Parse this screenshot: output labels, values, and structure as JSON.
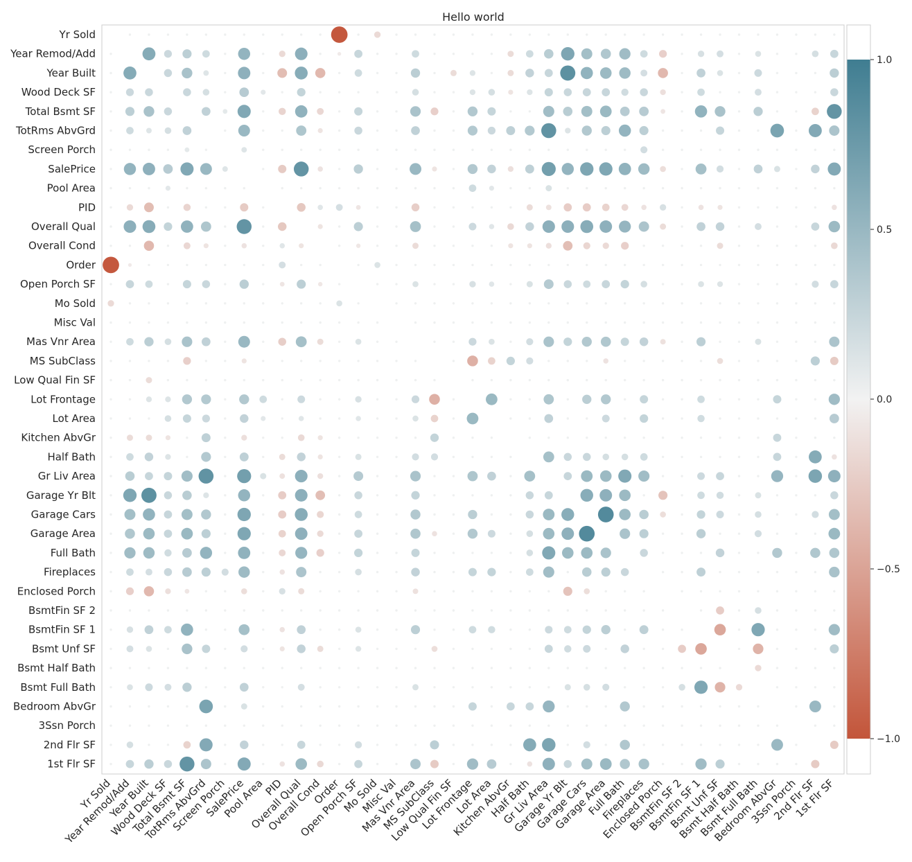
{
  "chart_data": {
    "type": "heatmap",
    "title": "Hello world",
    "variables": [
      "Yr Sold",
      "Year Remod/Add",
      "Year Built",
      "Wood Deck SF",
      "Total Bsmt SF",
      "TotRms AbvGrd",
      "Screen Porch",
      "SalePrice",
      "Pool Area",
      "PID",
      "Overall Qual",
      "Overall Cond",
      "Order",
      "Open Porch SF",
      "Mo Sold",
      "Misc Val",
      "Mas Vnr Area",
      "MS SubClass",
      "Low Qual Fin SF",
      "Lot Frontage",
      "Lot Area",
      "Kitchen AbvGr",
      "Half Bath",
      "Gr Liv Area",
      "Garage Yr Blt",
      "Garage Cars",
      "Garage Area",
      "Full Bath",
      "Fireplaces",
      "Enclosed Porch",
      "BsmtFin SF 2",
      "BsmtFin SF 1",
      "Bsmt Unf SF",
      "Bsmt Half Bath",
      "Bsmt Full Bath",
      "Bedroom AbvGr",
      "3Ssn Porch",
      "2nd Flr SF",
      "1st Flr SF"
    ],
    "encoding": "symmetric correlation matrix; marker size and color encode correlation; diagonal empty",
    "value_range": [
      -1.0,
      1.0
    ],
    "colorbar": {
      "ticks": [
        1.0,
        0.5,
        0.0,
        -0.5,
        -1.0
      ],
      "tick_labels": [
        "1.0",
        "0.5",
        "0.0",
        "−0.5",
        "−1.0"
      ],
      "placement": "right"
    },
    "colors": {
      "negative": "#c3553a",
      "neutral": "#f2f2f2",
      "positive": "#3f7d91"
    },
    "grid": false,
    "pairs_upper_triangle": [
      [
        0,
        12,
        -0.98
      ],
      [
        0,
        14,
        -0.15
      ],
      [
        1,
        2,
        0.61
      ],
      [
        1,
        3,
        0.22
      ],
      [
        1,
        4,
        0.3
      ],
      [
        1,
        5,
        0.2
      ],
      [
        1,
        7,
        0.53
      ],
      [
        1,
        9,
        -0.15
      ],
      [
        1,
        10,
        0.57
      ],
      [
        1,
        12,
        -0.05
      ],
      [
        1,
        13,
        0.24
      ],
      [
        1,
        16,
        0.2
      ],
      [
        1,
        21,
        -0.14
      ],
      [
        1,
        22,
        0.2
      ],
      [
        1,
        23,
        0.32
      ],
      [
        1,
        24,
        0.65
      ],
      [
        1,
        25,
        0.44
      ],
      [
        1,
        26,
        0.37
      ],
      [
        1,
        27,
        0.46
      ],
      [
        1,
        28,
        0.2
      ],
      [
        1,
        29,
        -0.22
      ],
      [
        1,
        31,
        0.15
      ],
      [
        1,
        32,
        0.17
      ],
      [
        1,
        34,
        0.13
      ],
      [
        1,
        37,
        0.16
      ],
      [
        1,
        38,
        0.24
      ],
      [
        2,
        3,
        0.23
      ],
      [
        2,
        4,
        0.41
      ],
      [
        2,
        5,
        0.11
      ],
      [
        2,
        7,
        0.56
      ],
      [
        2,
        9,
        -0.34
      ],
      [
        2,
        10,
        0.6
      ],
      [
        2,
        11,
        -0.37
      ],
      [
        2,
        13,
        0.2
      ],
      [
        2,
        16,
        0.31
      ],
      [
        2,
        18,
        -0.14
      ],
      [
        2,
        19,
        0.12
      ],
      [
        2,
        21,
        -0.14
      ],
      [
        2,
        22,
        0.27
      ],
      [
        2,
        23,
        0.24
      ],
      [
        2,
        24,
        0.83
      ],
      [
        2,
        25,
        0.54
      ],
      [
        2,
        26,
        0.48
      ],
      [
        2,
        27,
        0.47
      ],
      [
        2,
        28,
        0.17
      ],
      [
        2,
        29,
        -0.37
      ],
      [
        2,
        31,
        0.28
      ],
      [
        2,
        32,
        0.13
      ],
      [
        2,
        34,
        0.21
      ],
      [
        2,
        38,
        0.31
      ],
      [
        3,
        4,
        0.23
      ],
      [
        3,
        5,
        0.16
      ],
      [
        3,
        7,
        0.33
      ],
      [
        3,
        8,
        0.09
      ],
      [
        3,
        10,
        0.26
      ],
      [
        3,
        16,
        0.16
      ],
      [
        3,
        19,
        0.12
      ],
      [
        3,
        20,
        0.16
      ],
      [
        3,
        21,
        -0.09
      ],
      [
        3,
        22,
        0.12
      ],
      [
        3,
        23,
        0.25
      ],
      [
        3,
        24,
        0.23
      ],
      [
        3,
        25,
        0.24
      ],
      [
        3,
        26,
        0.24
      ],
      [
        3,
        27,
        0.19
      ],
      [
        3,
        28,
        0.23
      ],
      [
        3,
        29,
        -0.12
      ],
      [
        3,
        31,
        0.2
      ],
      [
        3,
        34,
        0.17
      ],
      [
        3,
        38,
        0.23
      ],
      [
        4,
        5,
        0.28
      ],
      [
        4,
        6,
        0.08
      ],
      [
        4,
        7,
        0.63
      ],
      [
        4,
        9,
        -0.19
      ],
      [
        4,
        10,
        0.55
      ],
      [
        4,
        11,
        -0.17
      ],
      [
        4,
        13,
        0.25
      ],
      [
        4,
        16,
        0.4
      ],
      [
        4,
        17,
        -0.22
      ],
      [
        4,
        19,
        0.36
      ],
      [
        4,
        20,
        0.25
      ],
      [
        4,
        23,
        0.45
      ],
      [
        4,
        24,
        0.32
      ],
      [
        4,
        25,
        0.44
      ],
      [
        4,
        26,
        0.49
      ],
      [
        4,
        27,
        0.33
      ],
      [
        4,
        28,
        0.33
      ],
      [
        4,
        29,
        -0.08
      ],
      [
        4,
        31,
        0.54
      ],
      [
        4,
        32,
        0.41
      ],
      [
        4,
        34,
        0.31
      ],
      [
        4,
        37,
        -0.2
      ],
      [
        4,
        38,
        0.8
      ],
      [
        5,
        7,
        0.5
      ],
      [
        5,
        10,
        0.38
      ],
      [
        5,
        11,
        -0.09
      ],
      [
        5,
        13,
        0.23
      ],
      [
        5,
        16,
        0.28
      ],
      [
        5,
        19,
        0.35
      ],
      [
        5,
        20,
        0.22
      ],
      [
        5,
        21,
        0.29
      ],
      [
        5,
        22,
        0.35
      ],
      [
        5,
        23,
        0.81
      ],
      [
        5,
        24,
        0.12
      ],
      [
        5,
        25,
        0.36
      ],
      [
        5,
        26,
        0.3
      ],
      [
        5,
        27,
        0.53
      ],
      [
        5,
        28,
        0.3
      ],
      [
        5,
        32,
        0.25
      ],
      [
        5,
        35,
        0.67
      ],
      [
        5,
        37,
        0.62
      ],
      [
        5,
        38,
        0.39
      ],
      [
        6,
        7,
        0.11
      ],
      [
        6,
        28,
        0.18
      ],
      [
        7,
        9,
        -0.25
      ],
      [
        7,
        10,
        0.8
      ],
      [
        7,
        11,
        -0.1
      ],
      [
        7,
        13,
        0.31
      ],
      [
        7,
        16,
        0.5
      ],
      [
        7,
        17,
        -0.09
      ],
      [
        7,
        19,
        0.36
      ],
      [
        7,
        20,
        0.27
      ],
      [
        7,
        21,
        -0.12
      ],
      [
        7,
        22,
        0.29
      ],
      [
        7,
        23,
        0.71
      ],
      [
        7,
        24,
        0.53
      ],
      [
        7,
        25,
        0.65
      ],
      [
        7,
        26,
        0.64
      ],
      [
        7,
        27,
        0.55
      ],
      [
        7,
        28,
        0.47
      ],
      [
        7,
        29,
        -0.13
      ],
      [
        7,
        31,
        0.43
      ],
      [
        7,
        32,
        0.18
      ],
      [
        7,
        34,
        0.28
      ],
      [
        7,
        35,
        0.14
      ],
      [
        7,
        37,
        0.27
      ],
      [
        7,
        38,
        0.62
      ],
      [
        8,
        19,
        0.2
      ],
      [
        8,
        20,
        0.09
      ],
      [
        8,
        23,
        0.14
      ],
      [
        9,
        10,
        -0.27
      ],
      [
        9,
        11,
        0.1
      ],
      [
        9,
        12,
        0.17
      ],
      [
        9,
        13,
        -0.08
      ],
      [
        9,
        16,
        -0.23
      ],
      [
        9,
        22,
        -0.14
      ],
      [
        9,
        23,
        -0.11
      ],
      [
        9,
        24,
        -0.24
      ],
      [
        9,
        25,
        -0.24
      ],
      [
        9,
        26,
        -0.2
      ],
      [
        9,
        27,
        -0.17
      ],
      [
        9,
        28,
        -0.1
      ],
      [
        9,
        29,
        0.15
      ],
      [
        9,
        31,
        -0.1
      ],
      [
        9,
        32,
        -0.09
      ],
      [
        9,
        38,
        -0.1
      ],
      [
        10,
        11,
        -0.09
      ],
      [
        10,
        13,
        0.3
      ],
      [
        10,
        16,
        0.43
      ],
      [
        10,
        19,
        0.21
      ],
      [
        10,
        20,
        0.1
      ],
      [
        10,
        21,
        -0.16
      ],
      [
        10,
        22,
        0.27
      ],
      [
        10,
        23,
        0.57
      ],
      [
        10,
        24,
        0.57
      ],
      [
        10,
        25,
        0.6
      ],
      [
        10,
        26,
        0.56
      ],
      [
        10,
        27,
        0.52
      ],
      [
        10,
        28,
        0.39
      ],
      [
        10,
        29,
        -0.14
      ],
      [
        10,
        31,
        0.28
      ],
      [
        10,
        32,
        0.27
      ],
      [
        10,
        34,
        0.17
      ],
      [
        10,
        37,
        0.24
      ],
      [
        10,
        38,
        0.48
      ],
      [
        11,
        13,
        -0.07
      ],
      [
        11,
        16,
        -0.14
      ],
      [
        11,
        21,
        -0.09
      ],
      [
        11,
        22,
        -0.09
      ],
      [
        11,
        23,
        -0.12
      ],
      [
        11,
        24,
        -0.33
      ],
      [
        11,
        25,
        -0.18
      ],
      [
        11,
        26,
        -0.15
      ],
      [
        11,
        27,
        -0.22
      ],
      [
        11,
        32,
        -0.14
      ],
      [
        11,
        38,
        -0.16
      ],
      [
        12,
        14,
        0.13
      ],
      [
        13,
        16,
        0.13
      ],
      [
        13,
        19,
        0.15
      ],
      [
        13,
        20,
        0.1
      ],
      [
        13,
        22,
        0.14
      ],
      [
        13,
        23,
        0.34
      ],
      [
        13,
        24,
        0.23
      ],
      [
        13,
        25,
        0.2
      ],
      [
        13,
        26,
        0.24
      ],
      [
        13,
        27,
        0.26
      ],
      [
        13,
        28,
        0.16
      ],
      [
        13,
        31,
        0.13
      ],
      [
        13,
        32,
        0.12
      ],
      [
        13,
        37,
        0.18
      ],
      [
        13,
        38,
        0.24
      ],
      [
        16,
        19,
        0.22
      ],
      [
        16,
        20,
        0.13
      ],
      [
        16,
        22,
        0.18
      ],
      [
        16,
        23,
        0.4
      ],
      [
        16,
        24,
        0.26
      ],
      [
        16,
        25,
        0.36
      ],
      [
        16,
        26,
        0.37
      ],
      [
        16,
        27,
        0.25
      ],
      [
        16,
        28,
        0.27
      ],
      [
        16,
        29,
        -0.11
      ],
      [
        16,
        31,
        0.3
      ],
      [
        16,
        34,
        0.14
      ],
      [
        16,
        38,
        0.39
      ],
      [
        17,
        19,
        -0.42
      ],
      [
        17,
        20,
        -0.2
      ],
      [
        17,
        21,
        0.26
      ],
      [
        17,
        22,
        0.18
      ],
      [
        17,
        26,
        -0.1
      ],
      [
        17,
        32,
        -0.13
      ],
      [
        17,
        37,
        0.3
      ],
      [
        17,
        38,
        -0.25
      ],
      [
        19,
        20,
        0.49
      ],
      [
        19,
        23,
        0.38
      ],
      [
        19,
        25,
        0.31
      ],
      [
        19,
        26,
        0.36
      ],
      [
        19,
        28,
        0.25
      ],
      [
        19,
        31,
        0.2
      ],
      [
        19,
        35,
        0.25
      ],
      [
        19,
        38,
        0.46
      ],
      [
        20,
        23,
        0.28
      ],
      [
        20,
        26,
        0.21
      ],
      [
        20,
        28,
        0.26
      ],
      [
        20,
        31,
        0.19
      ],
      [
        20,
        38,
        0.33
      ],
      [
        21,
        35,
        0.24
      ],
      [
        22,
        23,
        0.43
      ],
      [
        22,
        24,
        0.23
      ],
      [
        22,
        25,
        0.23
      ],
      [
        22,
        26,
        0.16
      ],
      [
        22,
        27,
        0.16
      ],
      [
        22,
        28,
        0.2
      ],
      [
        22,
        35,
        0.24
      ],
      [
        22,
        37,
        0.61
      ],
      [
        22,
        38,
        -0.1
      ],
      [
        23,
        24,
        0.24
      ],
      [
        23,
        25,
        0.49
      ],
      [
        23,
        26,
        0.48
      ],
      [
        23,
        27,
        0.63
      ],
      [
        23,
        28,
        0.45
      ],
      [
        23,
        31,
        0.21
      ],
      [
        23,
        32,
        0.24
      ],
      [
        23,
        35,
        0.52
      ],
      [
        23,
        37,
        0.66
      ],
      [
        23,
        38,
        0.56
      ],
      [
        24,
        25,
        0.59
      ],
      [
        24,
        26,
        0.56
      ],
      [
        24,
        27,
        0.48
      ],
      [
        24,
        29,
        -0.3
      ],
      [
        24,
        31,
        0.2
      ],
      [
        24,
        32,
        0.19
      ],
      [
        24,
        34,
        0.14
      ],
      [
        24,
        38,
        0.23
      ],
      [
        25,
        26,
        0.89
      ],
      [
        25,
        27,
        0.48
      ],
      [
        25,
        28,
        0.32
      ],
      [
        25,
        29,
        -0.13
      ],
      [
        25,
        31,
        0.26
      ],
      [
        25,
        32,
        0.21
      ],
      [
        25,
        34,
        0.16
      ],
      [
        25,
        37,
        0.18
      ],
      [
        25,
        38,
        0.44
      ],
      [
        26,
        27,
        0.4
      ],
      [
        26,
        28,
        0.3
      ],
      [
        26,
        31,
        0.31
      ],
      [
        26,
        34,
        0.18
      ],
      [
        26,
        38,
        0.49
      ],
      [
        27,
        28,
        0.23
      ],
      [
        27,
        32,
        0.27
      ],
      [
        27,
        35,
        0.36
      ],
      [
        27,
        37,
        0.37
      ],
      [
        27,
        38,
        0.37
      ],
      [
        28,
        31,
        0.29
      ],
      [
        28,
        38,
        0.41
      ],
      [
        30,
        32,
        -0.24
      ],
      [
        30,
        34,
        0.16
      ],
      [
        31,
        32,
        -0.48
      ],
      [
        31,
        34,
        0.64
      ],
      [
        31,
        38,
        0.46
      ],
      [
        32,
        34,
        -0.4
      ],
      [
        32,
        38,
        0.3
      ],
      [
        33,
        34,
        -0.15
      ],
      [
        35,
        37,
        0.5
      ],
      [
        37,
        38,
        -0.25
      ]
    ]
  }
}
